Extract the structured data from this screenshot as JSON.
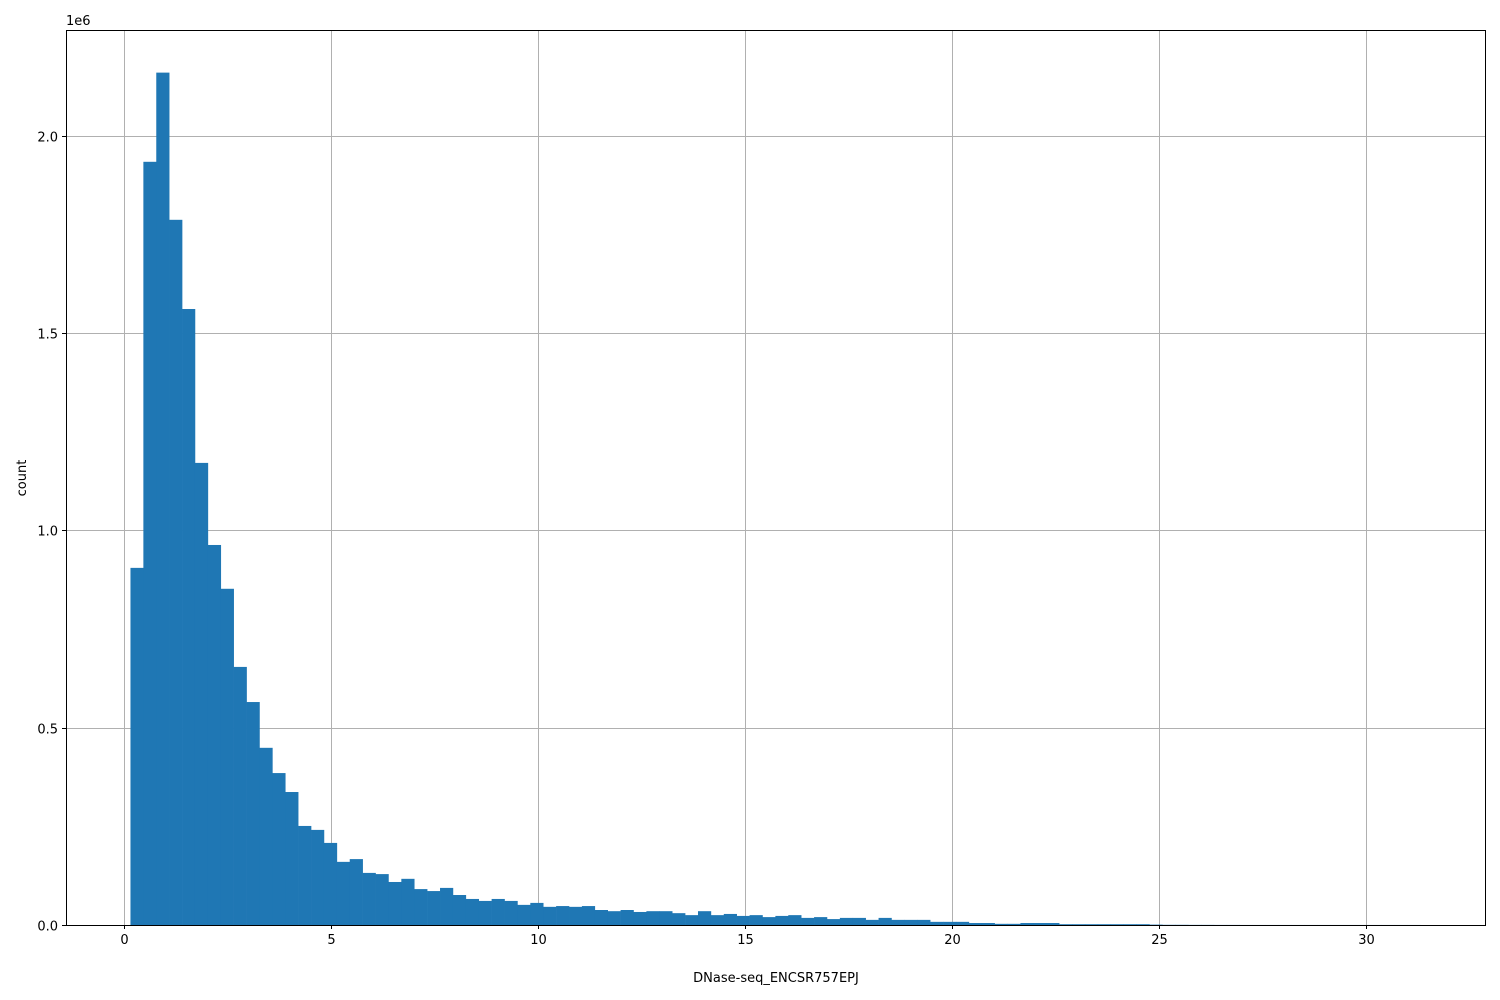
{
  "chart_data": {
    "type": "bar",
    "subtype": "histogram",
    "title": "",
    "xlabel": "DNase-seq_ENCSR757EPJ",
    "ylabel": "count",
    "y_offset_label": "1e6",
    "xlim": [
      -1.4,
      32.87
    ],
    "ylim": [
      0,
      2.268
    ],
    "y_scale_factor": 1000000,
    "grid": true,
    "bar_color": "#1f77b4",
    "bin_start": 0.157,
    "bin_width": 0.3115,
    "x_ticks": [
      0,
      5,
      10,
      15,
      20,
      25,
      30
    ],
    "x_tick_labels": [
      "0",
      "5",
      "10",
      "15",
      "20",
      "25",
      "30"
    ],
    "y_ticks": [
      0,
      0.5,
      1.0,
      1.5,
      2.0
    ],
    "y_tick_labels": [
      "0.0",
      "0.5",
      "1.0",
      "1.5",
      "2.0"
    ],
    "values_millions": [
      0.905,
      1.934,
      2.16,
      1.787,
      1.561,
      1.171,
      0.963,
      0.852,
      0.654,
      0.565,
      0.449,
      0.385,
      0.337,
      0.251,
      0.241,
      0.208,
      0.16,
      0.167,
      0.132,
      0.129,
      0.109,
      0.117,
      0.091,
      0.086,
      0.094,
      0.076,
      0.066,
      0.061,
      0.066,
      0.061,
      0.051,
      0.056,
      0.046,
      0.048,
      0.046,
      0.048,
      0.038,
      0.035,
      0.038,
      0.033,
      0.035,
      0.035,
      0.03,
      0.025,
      0.035,
      0.025,
      0.028,
      0.023,
      0.025,
      0.02,
      0.023,
      0.025,
      0.018,
      0.02,
      0.015,
      0.018,
      0.018,
      0.013,
      0.018,
      0.013,
      0.013,
      0.013,
      0.008,
      0.008,
      0.008,
      0.005,
      0.005,
      0.003,
      0.003,
      0.005,
      0.005,
      0.005,
      0.002,
      0.002,
      0.002,
      0.002,
      0.002,
      0.002,
      0.002,
      0.001,
      0.0005,
      0.0005,
      0.0003,
      0.0003,
      0.0002,
      0.0002,
      0.0001,
      0.0001,
      0.0001,
      0.0001,
      0.0001,
      0.0001,
      0.0001,
      0.0001,
      0.0001,
      0.0001,
      0.0001,
      0.0001,
      0.0001,
      0.0001
    ]
  }
}
